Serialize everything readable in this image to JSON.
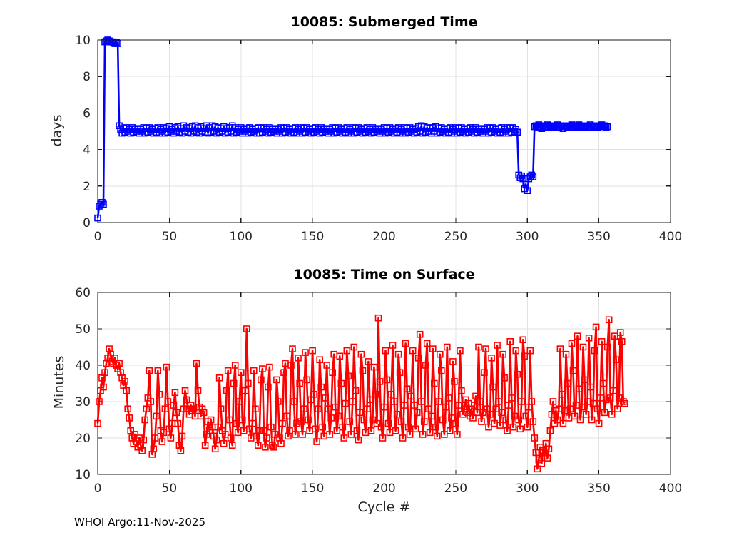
{
  "figure": {
    "footer": "WHOI Argo:11-Nov-2025",
    "background": "#FFFFFF",
    "axis_color": "#1a1a1a",
    "grid_color": "#E2E2E2",
    "tick_label_color": "#262626"
  },
  "chart_data": [
    {
      "type": "line",
      "title": "10085: Submerged Time",
      "ylabel": "days",
      "xlabel": "",
      "xlim": [
        0,
        400
      ],
      "ylim": [
        0,
        10
      ],
      "xticks": [
        0,
        50,
        100,
        150,
        200,
        250,
        300,
        350,
        400
      ],
      "yticks": [
        0,
        2,
        4,
        6,
        8,
        10
      ],
      "grid": true,
      "legend": "none",
      "line_color": "#0000FF",
      "marker": "open-square",
      "series": [
        {
          "name": "submerged_days",
          "x_start": 0,
          "x_step": 1,
          "values": [
            0.25,
            0.9,
            1.0,
            1.1,
            1.0,
            9.9,
            9.95,
            10.0,
            9.95,
            9.9,
            9.9,
            9.85,
            9.8,
            9.85,
            9.8,
            5.3,
            5.1,
            4.9,
            5.15,
            4.95,
            5.2,
            5.0,
            5.1,
            4.9,
            5.2,
            4.95,
            5.1,
            5.0,
            5.15,
            4.9,
            5.1,
            5.0,
            5.2,
            4.9,
            5.15,
            4.95,
            5.2,
            5.0,
            5.1,
            4.9,
            5.15,
            4.95,
            5.2,
            4.9,
            5.1,
            5.0,
            5.2,
            4.9,
            5.15,
            4.95,
            5.25,
            5.0,
            5.1,
            4.9,
            5.2,
            5.0,
            5.25,
            4.95,
            5.15,
            4.9,
            5.3,
            5.0,
            5.2,
            4.95,
            5.15,
            4.9,
            5.25,
            5.0,
            5.3,
            4.95,
            5.2,
            4.9,
            5.25,
            5.0,
            5.15,
            4.95,
            5.3,
            4.9,
            5.2,
            4.95,
            5.3,
            5.0,
            5.25,
            4.9,
            5.2,
            4.95,
            5.15,
            5.0,
            5.25,
            4.9,
            5.15,
            4.95,
            5.2,
            5.0,
            5.3,
            4.9,
            5.2,
            4.95,
            5.1,
            5.0,
            5.2,
            4.9,
            5.1,
            5.0,
            5.15,
            4.9,
            5.2,
            4.95,
            5.1,
            5.0,
            5.15,
            4.9,
            5.2,
            4.9,
            5.15,
            4.95,
            5.2,
            5.0,
            5.1,
            4.9,
            5.2,
            4.95,
            5.1,
            5.0,
            5.15,
            4.9,
            5.1,
            5.0,
            5.2,
            4.9,
            5.15,
            4.95,
            5.2,
            5.0,
            5.1,
            4.9,
            5.15,
            4.95,
            5.2,
            4.9,
            5.1,
            5.0,
            5.2,
            4.9,
            5.15,
            4.95,
            5.2,
            5.0,
            5.1,
            4.9,
            5.15,
            4.95,
            5.2,
            5.0,
            5.1,
            4.9,
            5.2,
            4.95,
            5.1,
            5.0,
            5.15,
            4.9,
            5.1,
            5.0,
            5.2,
            4.9,
            5.15,
            4.95,
            5.2,
            5.0,
            5.1,
            4.9,
            5.15,
            4.95,
            5.2,
            4.9,
            5.1,
            5.0,
            5.2,
            4.9,
            5.15,
            4.95,
            5.2,
            5.0,
            5.1,
            4.9,
            5.15,
            4.95,
            5.2,
            5.0,
            5.1,
            4.9,
            5.2,
            4.95,
            5.1,
            5.0,
            5.15,
            4.9,
            5.1,
            5.0,
            5.2,
            4.9,
            5.15,
            4.95,
            5.2,
            5.0,
            5.1,
            4.9,
            5.15,
            4.95,
            5.2,
            4.9,
            5.1,
            5.0,
            5.2,
            4.9,
            5.15,
            4.95,
            5.2,
            5.0,
            5.1,
            4.9,
            5.15,
            4.95,
            5.25,
            5.0,
            5.3,
            4.9,
            5.25,
            4.95,
            5.2,
            5.0,
            5.15,
            4.9,
            5.2,
            5.0,
            5.25,
            4.9,
            5.15,
            4.95,
            5.2,
            5.0,
            5.1,
            4.9,
            5.15,
            4.95,
            5.2,
            4.9,
            5.1,
            5.0,
            5.2,
            4.9,
            5.15,
            4.95,
            5.2,
            5.0,
            5.1,
            4.9,
            5.15,
            4.95,
            5.2,
            5.0,
            5.1,
            4.9,
            5.2,
            4.95,
            5.1,
            5.0,
            5.15,
            4.9,
            5.1,
            5.0,
            5.2,
            4.9,
            5.15,
            4.95,
            5.2,
            5.0,
            5.1,
            4.9,
            5.15,
            4.95,
            5.2,
            4.9,
            5.1,
            5.0,
            5.2,
            4.9,
            5.15,
            4.95,
            5.2,
            5.0,
            5.1,
            4.95,
            2.6,
            2.45,
            2.55,
            2.4,
            1.85,
            2.1,
            1.75,
            2.4,
            2.5,
            2.6,
            2.5,
            5.25,
            5.3,
            5.2,
            5.35,
            5.25,
            5.15,
            5.3,
            5.2,
            5.25,
            5.35,
            5.2,
            5.3,
            5.25,
            5.2,
            5.3,
            5.25,
            5.35,
            5.2,
            5.25,
            5.3,
            5.15,
            5.25,
            5.3,
            5.2,
            5.3,
            5.25,
            5.35,
            5.2,
            5.25,
            5.3,
            5.2,
            5.35,
            5.25,
            5.3,
            5.2,
            5.25,
            5.3,
            5.2,
            5.25,
            5.35,
            5.25,
            5.2,
            5.3,
            5.25,
            5.2,
            5.3,
            5.25,
            5.35,
            5.25,
            5.3,
            5.2,
            5.25
          ]
        }
      ]
    },
    {
      "type": "line",
      "title": "10085: Time on Surface",
      "ylabel": "Minutes",
      "xlabel": "Cycle #",
      "xlim": [
        0,
        400
      ],
      "ylim": [
        10,
        60
      ],
      "xticks": [
        0,
        50,
        100,
        150,
        200,
        250,
        300,
        350,
        400
      ],
      "yticks": [
        10,
        20,
        30,
        40,
        50,
        60
      ],
      "grid": true,
      "legend": "none",
      "line_color": "#FF0000",
      "marker": "open-square",
      "series": [
        {
          "name": "surface_minutes",
          "x_start": 0,
          "x_step": 1,
          "values": [
            24,
            30,
            33,
            36.5,
            34,
            38,
            40.5,
            42,
            44.5,
            43,
            41,
            40.5,
            42,
            40,
            39,
            40.5,
            38,
            36.5,
            34.5,
            35.5,
            33,
            28,
            25.5,
            22,
            20,
            18.5,
            21,
            19,
            17.5,
            20,
            18,
            16.5,
            19.5,
            25,
            28,
            31,
            38.5,
            30,
            15.5,
            17,
            20,
            26,
            38.5,
            32,
            22,
            19,
            21.5,
            28,
            39.5,
            30,
            22.5,
            20,
            24,
            29,
            32.5,
            27,
            24,
            18,
            16.5,
            20.5,
            28,
            33,
            30.5,
            28,
            26.5,
            29,
            27.5,
            28,
            26,
            40.5,
            33,
            28.5,
            26,
            28,
            27,
            18,
            21,
            24.5,
            22,
            25,
            23,
            20.5,
            17,
            19.5,
            23,
            36.5,
            28,
            22,
            18.5,
            21,
            33,
            38.5,
            25,
            20,
            18,
            35,
            40,
            24,
            21.5,
            30,
            38,
            25,
            22,
            33,
            50,
            35,
            22.5,
            20,
            24,
            38.5,
            28,
            20.5,
            18,
            22,
            36,
            39,
            22,
            17.5,
            20,
            34,
            39.5,
            23,
            18,
            17.5,
            21,
            36,
            30,
            20,
            18.5,
            24,
            38,
            40.5,
            26,
            20.5,
            22,
            40,
            44.5,
            30,
            21,
            24,
            42,
            35,
            24.5,
            21,
            28,
            43.5,
            36,
            25,
            22,
            30.5,
            44,
            32,
            22.5,
            19,
            28,
            41.5,
            34,
            23,
            20.5,
            31,
            40,
            28,
            21,
            25.5,
            38,
            43,
            28.5,
            22,
            26,
            42.5,
            35,
            23,
            20,
            29.5,
            44,
            37,
            24.5,
            21,
            30,
            45,
            33,
            22,
            19.5,
            27,
            43,
            38.5,
            25,
            21.5,
            28,
            41,
            30.5,
            22,
            25,
            39.5,
            32,
            24,
            53,
            35.5,
            23,
            20,
            28.5,
            44,
            36,
            24,
            21.5,
            32,
            45.5,
            30,
            22,
            26.5,
            43,
            38,
            24.5,
            20,
            29,
            46,
            33.5,
            23,
            21,
            31.5,
            44,
            29,
            22.5,
            27,
            42,
            48.5,
            30,
            21,
            24.5,
            40,
            46,
            28,
            21.5,
            26,
            44.5,
            35,
            23,
            20.5,
            30,
            43,
            38.5,
            25,
            21,
            28.5,
            45,
            31,
            22,
            25.5,
            41,
            35.5,
            24,
            21,
            29,
            44,
            33,
            26.5,
            28,
            30.5,
            27,
            29.5,
            26,
            28,
            25.5,
            29,
            31.5,
            27,
            45,
            30,
            24.5,
            27,
            38,
            44.5,
            28,
            23,
            26.5,
            42,
            34,
            24,
            28,
            45.5,
            30,
            23.5,
            27,
            43,
            36.5,
            25,
            22,
            29,
            46.5,
            31,
            23,
            26,
            44,
            37.5,
            25,
            22.5,
            30,
            47,
            42.5,
            26,
            23,
            28.5,
            44,
            30,
            24.5,
            20,
            16,
            11.5,
            14,
            17.5,
            13,
            16.5,
            15,
            18.5,
            14.5,
            17,
            22,
            26.5,
            30,
            24,
            27.5,
            25,
            28,
            44.5,
            32,
            24,
            27.5,
            43,
            35,
            25.5,
            28,
            46,
            38.5,
            26,
            29,
            48,
            33.5,
            25,
            28.5,
            45,
            36,
            26.5,
            30,
            47.5,
            34,
            25,
            29.5,
            44,
            50.5,
            28,
            24,
            31,
            46.5,
            35,
            27,
            30.5,
            45,
            52.5,
            31,
            26.5,
            33,
            48,
            41.5,
            28,
            31,
            49,
            46.5,
            30,
            29.5
          ]
        }
      ]
    }
  ]
}
